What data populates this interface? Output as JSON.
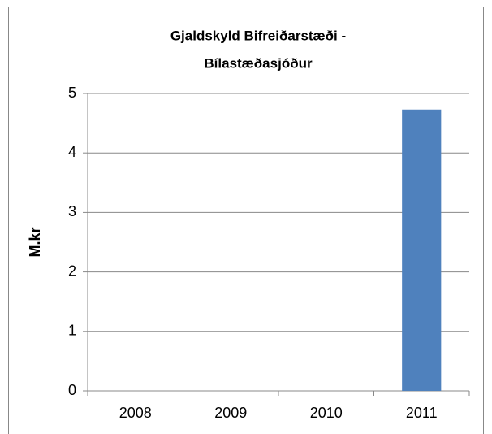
{
  "chart_data": {
    "type": "bar",
    "title": [
      "Gjaldskyld Bifreiðarstæði -",
      "Bílastæðasjóður"
    ],
    "y_label": "M.kr",
    "categories": [
      "2008",
      "2009",
      "2010",
      "2011"
    ],
    "values": [
      0,
      0,
      0,
      4.73
    ],
    "color": "#4f81bd",
    "ylim": [
      0,
      5
    ],
    "yticks": [
      0,
      1,
      2,
      3,
      4,
      5
    ],
    "grid": true
  }
}
